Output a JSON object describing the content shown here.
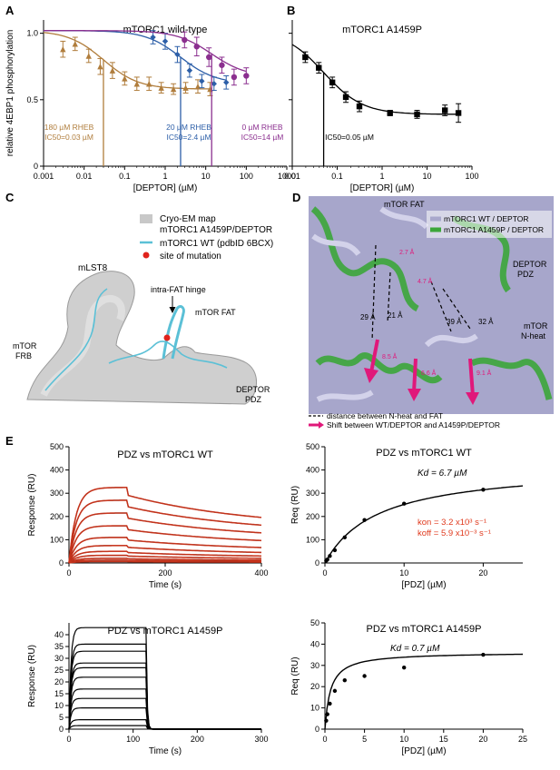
{
  "panels": {
    "A": {
      "letter": "A",
      "title": "mTORC1 wild-type"
    },
    "B": {
      "letter": "B",
      "title": "mTORC1 A1459P"
    },
    "C": {
      "letter": "C"
    },
    "D": {
      "letter": "D"
    },
    "E": {
      "letter": "E"
    }
  },
  "colors": {
    "rheb180": "#b07d3c",
    "rheb20": "#2d5fa8",
    "rheb0": "#8b2f8f",
    "fit_red": "#e03a1e",
    "magenta": "#e0187a",
    "cyan": "#5bc0d6",
    "map_grey": "#c8c8c8",
    "green": "#3ca63a",
    "lavender": "#a9a8cc"
  },
  "panel_c": {
    "legend": [
      {
        "label": "Cryo-EM map\nmTORC1 A1459P/DEPTOR",
        "kind": "swatch-grey"
      },
      {
        "label": "mTORC1 WT (pdbID 6BCX)",
        "kind": "line-cyan"
      },
      {
        "label": "site of mutation",
        "kind": "dot-red"
      }
    ],
    "labels": {
      "mlst8": "mLST8",
      "hinge": "intra-FAT hinge",
      "mtor_fat": "mTOR FAT",
      "mtor_frb_1": "mTOR",
      "mtor_frb_2": "FRB",
      "deptor_1": "DEPTOR",
      "deptor_2": "PDZ"
    }
  },
  "panel_d": {
    "legend": [
      "mTORC1 WT / DEPTOR",
      "mTORC1 A1459P / DEPTOR"
    ],
    "labels": {
      "mtor_fat": "mTOR FAT",
      "deptor_1": "DEPTOR",
      "deptor_2": "PDZ",
      "nheat_1": "mTOR",
      "nheat_2": "N-heat",
      "d1": "29 Å",
      "d2": "21 Å",
      "d3": "39 Å",
      "d4": "32 Å",
      "m1": "2.7 Å",
      "m2": "4.7 Å",
      "m3": "8.5 Å",
      "m4": "6.6 Å",
      "m5": "9.1 Å"
    },
    "footer": [
      "distance between N-heat and FAT",
      "Shift between WT/DEPTOR and A1459P/DEPTOR"
    ]
  },
  "chart_data": [
    {
      "id": "A",
      "type": "scatter",
      "title": "mTORC1 wild-type",
      "xlabel": "[DEPTOR] (µM)",
      "ylabel": "relative 4EBP1 phosphorylation",
      "xscale": "log",
      "xlim": [
        0.001,
        1000
      ],
      "ylim": [
        0,
        1.1
      ],
      "xticks": [
        "0.001",
        "0.01",
        "0.1",
        "1",
        "10",
        "100",
        "1000"
      ],
      "yticks": [
        "0",
        "0.5",
        "1.0"
      ],
      "series": [
        {
          "name": "180 µM RHEB",
          "ic50_label": "IC50=0.03 µM",
          "ic50": 0.03,
          "color_key": "rheb180",
          "marker": "triangle",
          "x": [
            0.003,
            0.006,
            0.013,
            0.025,
            0.05,
            0.1,
            0.2,
            0.4,
            0.8,
            1.6,
            3.2,
            6.4,
            12.8
          ],
          "y": [
            0.88,
            0.92,
            0.83,
            0.75,
            0.72,
            0.66,
            0.62,
            0.62,
            0.59,
            0.58,
            0.59,
            0.6,
            0.58
          ],
          "err": [
            0.06,
            0.05,
            0.05,
            0.06,
            0.06,
            0.05,
            0.05,
            0.05,
            0.04,
            0.04,
            0.04,
            0.05,
            0.05
          ]
        },
        {
          "name": "20 µM RHEB",
          "ic50_label": "IC50=2.4 µM",
          "ic50": 2.4,
          "color_key": "rheb20",
          "marker": "diamond",
          "x": [
            0.5,
            1,
            2,
            4,
            8,
            16,
            32
          ],
          "y": [
            0.97,
            0.94,
            0.84,
            0.72,
            0.64,
            0.62,
            0.63
          ],
          "err": [
            0.05,
            0.06,
            0.06,
            0.05,
            0.05,
            0.05,
            0.05
          ]
        },
        {
          "name": "0 µM RHEB",
          "ic50_label": "IC50=14 µM",
          "ic50": 14,
          "color_key": "rheb0",
          "marker": "circle",
          "x": [
            3,
            6,
            12,
            25,
            50,
            100
          ],
          "y": [
            0.95,
            0.9,
            0.82,
            0.76,
            0.67,
            0.68
          ],
          "err": [
            0.06,
            0.07,
            0.07,
            0.06,
            0.06,
            0.06
          ]
        }
      ]
    },
    {
      "id": "B",
      "type": "scatter",
      "title": "mTORC1 A1459P",
      "xlabel": "[DEPTOR] (µM)",
      "xscale": "log",
      "xlim": [
        0.01,
        100
      ],
      "ylim": [
        0,
        1.1
      ],
      "xticks": [
        "0.01",
        "0.1",
        "1",
        "10",
        "100"
      ],
      "series": [
        {
          "name": "",
          "ic50_label": "IC50=0.05 µM",
          "ic50": 0.05,
          "color_key": "black",
          "marker": "square",
          "x": [
            0.0195,
            0.039,
            0.078,
            0.156,
            0.3125,
            1.5,
            6,
            25,
            50
          ],
          "y": [
            0.82,
            0.74,
            0.63,
            0.52,
            0.45,
            0.4,
            0.39,
            0.42,
            0.4
          ],
          "err": [
            0.04,
            0.04,
            0.04,
            0.04,
            0.04,
            0.02,
            0.03,
            0.04,
            0.07
          ]
        }
      ]
    },
    {
      "id": "E1",
      "type": "line",
      "title": "PDZ vs mTORC1 WT",
      "xlabel": "Time (s)",
      "ylabel": "Response (RU)",
      "xlim": [
        0,
        400
      ],
      "ylim": [
        0,
        500
      ],
      "xticks": [
        "0",
        "200",
        "400"
      ],
      "yticks": [
        "0",
        "100",
        "200",
        "300",
        "400",
        "500"
      ],
      "traces_plateau": [
        325,
        270,
        215,
        160,
        110,
        75,
        50,
        33,
        20,
        12,
        6
      ]
    },
    {
      "id": "E2",
      "type": "scatter",
      "title": "PDZ vs mTORC1 WT",
      "xlabel": "[PDZ] (µM)",
      "ylabel": "Req (RU)",
      "xlim": [
        0,
        25
      ],
      "ylim": [
        0,
        500
      ],
      "xticks": [
        "0",
        "10",
        "20"
      ],
      "yticks": [
        "0",
        "100",
        "200",
        "300",
        "400",
        "500"
      ],
      "kd_label": "Kd = 6.7 µM",
      "kon_label": "kon = 3.2 x10³ s⁻¹",
      "koff_label": "koff = 5.9 x10⁻³ s⁻¹",
      "x": [
        0.16,
        0.31,
        0.62,
        1.25,
        2.5,
        5,
        10,
        20
      ],
      "y": [
        10,
        15,
        30,
        55,
        110,
        185,
        255,
        315
      ]
    },
    {
      "id": "E3",
      "type": "line",
      "title": "PDZ vs mTORC1 A1459P",
      "xlabel": "Time (s)",
      "ylabel": "Response (RU)",
      "xlim": [
        0,
        300
      ],
      "ylim": [
        0,
        45
      ],
      "xticks": [
        "0",
        "100",
        "200",
        "300"
      ],
      "yticks": [
        "0",
        "5",
        "10",
        "15",
        "20",
        "25",
        "30",
        "35",
        "40"
      ],
      "traces_plateau": [
        43,
        36,
        33,
        28,
        26,
        22,
        17,
        13,
        9,
        4,
        1.5
      ]
    },
    {
      "id": "E4",
      "type": "scatter",
      "title": "PDZ vs mTORC1 A1459P",
      "xlabel": "[PDZ] (µM)",
      "ylabel": "Req (RU)",
      "xlim": [
        0,
        25
      ],
      "ylim": [
        0,
        50
      ],
      "xticks": [
        "0",
        "5",
        "10",
        "15",
        "20",
        "25"
      ],
      "yticks": [
        "0",
        "10",
        "20",
        "30",
        "40",
        "50"
      ],
      "kd_label": "Kd = 0.7 µM",
      "x": [
        0.16,
        0.31,
        0.62,
        1.25,
        2.5,
        5,
        10,
        20
      ],
      "y": [
        4,
        7,
        12,
        18,
        23,
        25,
        29,
        35
      ]
    }
  ]
}
